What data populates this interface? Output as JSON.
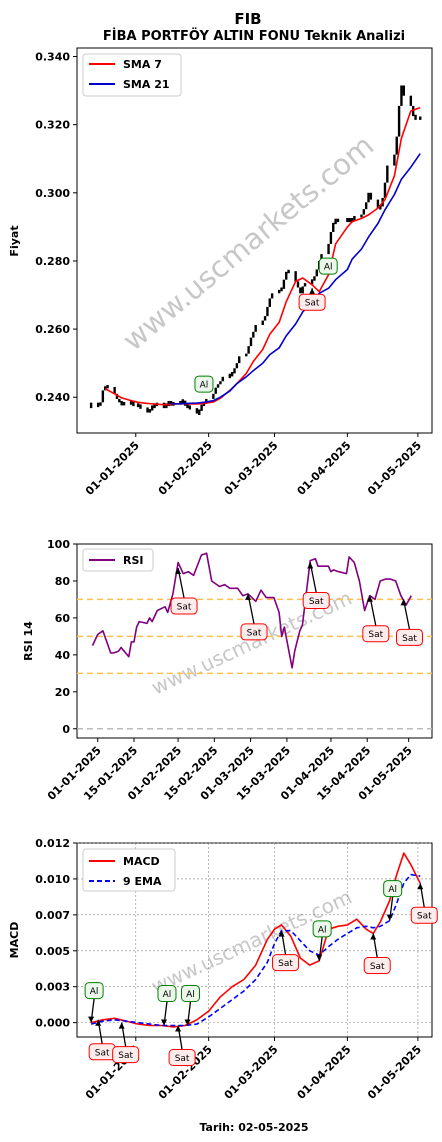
{
  "header": {
    "title": "FIB",
    "subtitle": "FİBA PORTFÖY ALTIN FONU Teknik Analizi"
  },
  "watermark": "www.uscmarkets.com",
  "footer": {
    "xlabel": "Tarih: 02-05-2025"
  },
  "colors": {
    "price": "#000000",
    "sma7": "#ff0000",
    "sma21": "#0000cc",
    "rsi": "#800080",
    "macd": "#ff0000",
    "ema9": "#0000ff",
    "buy": "#008000",
    "sell": "#ff0000",
    "level_line": "#ffc04d",
    "zero_line": "#bbbbbb"
  },
  "chart_data": [
    {
      "type": "line",
      "ylabel": "Fiyat",
      "ylim": [
        0.2295,
        0.3425
      ],
      "yticks": [
        0.24,
        0.26,
        0.28,
        0.3,
        0.32,
        0.34
      ],
      "ytick_labels": [
        "0.240",
        "0.260",
        "0.280",
        "0.300",
        "0.320",
        "0.340"
      ],
      "xlim": [
        "2024-12-07",
        "2025-05-07"
      ],
      "xticks": [
        "2025-01-01",
        "2025-02-01",
        "2025-03-01",
        "2025-04-01",
        "2025-05-01"
      ],
      "xtick_labels": [
        "01-01-2025",
        "01-02-2025",
        "01-03-2025",
        "01-04-2025",
        "01-05-2025"
      ],
      "legend": {
        "placement": "top-left",
        "entries": [
          "SMA 7",
          "SMA 21"
        ]
      },
      "price": {
        "x": [
          "2024-12-13",
          "2024-12-16",
          "2024-12-17",
          "2024-12-18",
          "2024-12-19",
          "2024-12-20",
          "2024-12-23",
          "2024-12-24",
          "2024-12-25",
          "2024-12-26",
          "2024-12-27",
          "2024-12-30",
          "2024-12-31",
          "2025-01-02",
          "2025-01-03",
          "2025-01-06",
          "2025-01-07",
          "2025-01-08",
          "2025-01-09",
          "2025-01-10",
          "2025-01-13",
          "2025-01-14",
          "2025-01-15",
          "2025-01-16",
          "2025-01-17",
          "2025-01-20",
          "2025-01-21",
          "2025-01-22",
          "2025-01-23",
          "2025-01-24",
          "2025-01-27",
          "2025-01-28",
          "2025-01-29",
          "2025-01-30",
          "2025-01-31",
          "2025-02-03",
          "2025-02-04",
          "2025-02-05",
          "2025-02-06",
          "2025-02-07",
          "2025-02-10",
          "2025-02-11",
          "2025-02-12",
          "2025-02-13",
          "2025-02-14",
          "2025-02-17",
          "2025-02-18",
          "2025-02-19",
          "2025-02-20",
          "2025-02-21",
          "2025-02-24",
          "2025-02-25",
          "2025-02-26",
          "2025-02-27",
          "2025-02-28",
          "2025-03-03",
          "2025-03-04",
          "2025-03-05",
          "2025-03-06",
          "2025-03-07",
          "2025-03-10",
          "2025-03-11",
          "2025-03-12",
          "2025-03-13",
          "2025-03-14",
          "2025-03-17",
          "2025-03-18",
          "2025-03-19",
          "2025-03-20",
          "2025-03-21",
          "2025-03-24",
          "2025-03-25",
          "2025-03-26",
          "2025-03-27",
          "2025-03-28",
          "2025-04-01",
          "2025-04-02",
          "2025-04-03",
          "2025-04-04",
          "2025-04-07",
          "2025-04-08",
          "2025-04-09",
          "2025-04-10",
          "2025-04-11",
          "2025-04-14",
          "2025-04-15",
          "2025-04-16",
          "2025-04-17",
          "2025-04-18",
          "2025-04-21",
          "2025-04-22",
          "2025-04-23",
          "2025-04-24",
          "2025-04-25",
          "2025-04-28",
          "2025-04-29",
          "2025-04-30",
          "2025-05-02"
        ],
        "values": [
          0.238,
          0.2375,
          0.2385,
          0.242,
          0.2432,
          0.243,
          0.241,
          0.2395,
          0.2385,
          0.238,
          0.2382,
          0.2385,
          0.2378,
          0.2375,
          0.237,
          0.2355,
          0.2365,
          0.2372,
          0.2378,
          0.238,
          0.2372,
          0.2378,
          0.2385,
          0.2379,
          0.2382,
          0.2385,
          0.239,
          0.2375,
          0.2372,
          0.2368,
          0.2352,
          0.236,
          0.2378,
          0.2383,
          0.2395,
          0.241,
          0.2428,
          0.2438,
          0.2447,
          0.246,
          0.2465,
          0.247,
          0.2485,
          0.25,
          0.252,
          0.2528,
          0.255,
          0.2575,
          0.2592,
          0.2612,
          0.2625,
          0.2638,
          0.2665,
          0.269,
          0.2705,
          0.2715,
          0.2718,
          0.2745,
          0.2768,
          0.277,
          0.274,
          0.2722,
          0.2705,
          0.2725,
          0.2735,
          0.2742,
          0.2755,
          0.2775,
          0.28,
          0.282,
          0.285,
          0.2885,
          0.2912,
          0.292,
          0.2918,
          0.2922,
          0.2918,
          0.2922,
          0.2928,
          0.2936,
          0.2952,
          0.2972,
          0.3,
          0.298,
          0.2955,
          0.296,
          0.2985,
          0.303,
          0.308,
          0.3112,
          0.3165,
          0.3255,
          0.3315,
          0.3285,
          0.3255,
          0.3225,
          0.3218,
          0.322
        ]
      },
      "series": [
        {
          "name": "SMA 7",
          "x": [
            "2024-12-19",
            "2024-12-23",
            "2024-12-26",
            "2024-12-30",
            "2025-01-02",
            "2025-01-06",
            "2025-01-09",
            "2025-01-13",
            "2025-01-16",
            "2025-01-20",
            "2025-01-23",
            "2025-01-27",
            "2025-01-30",
            "2025-02-03",
            "2025-02-06",
            "2025-02-10",
            "2025-02-13",
            "2025-02-17",
            "2025-02-20",
            "2025-02-24",
            "2025-02-27",
            "2025-03-03",
            "2025-03-06",
            "2025-03-10",
            "2025-03-13",
            "2025-03-17",
            "2025-03-20",
            "2025-03-24",
            "2025-03-27",
            "2025-04-01",
            "2025-04-03",
            "2025-04-07",
            "2025-04-10",
            "2025-04-14",
            "2025-04-17",
            "2025-04-21",
            "2025-04-24",
            "2025-04-28",
            "2025-05-02"
          ],
          "values": [
            0.2425,
            0.241,
            0.2398,
            0.239,
            0.2385,
            0.2382,
            0.238,
            0.2378,
            0.2379,
            0.2381,
            0.238,
            0.238,
            0.2382,
            0.2386,
            0.2397,
            0.242,
            0.244,
            0.247,
            0.2505,
            0.254,
            0.2585,
            0.262,
            0.268,
            0.274,
            0.275,
            0.273,
            0.271,
            0.276,
            0.285,
            0.29,
            0.2915,
            0.2925,
            0.2935,
            0.2955,
            0.298,
            0.305,
            0.316,
            0.324,
            0.325
          ]
        },
        {
          "name": "SMA 21",
          "x": [
            "2025-01-16",
            "2025-01-20",
            "2025-01-23",
            "2025-01-27",
            "2025-01-30",
            "2025-02-03",
            "2025-02-06",
            "2025-02-10",
            "2025-02-13",
            "2025-02-17",
            "2025-02-20",
            "2025-02-24",
            "2025-02-27",
            "2025-03-03",
            "2025-03-06",
            "2025-03-10",
            "2025-03-13",
            "2025-03-17",
            "2025-03-20",
            "2025-03-24",
            "2025-03-27",
            "2025-04-01",
            "2025-04-03",
            "2025-04-07",
            "2025-04-10",
            "2025-04-14",
            "2025-04-17",
            "2025-04-21",
            "2025-04-24",
            "2025-04-28",
            "2025-05-02"
          ],
          "values": [
            0.238,
            0.2381,
            0.2382,
            0.2383,
            0.2385,
            0.239,
            0.24,
            0.2418,
            0.244,
            0.246,
            0.2478,
            0.25,
            0.2525,
            0.2545,
            0.258,
            0.2615,
            0.265,
            0.268,
            0.2705,
            0.272,
            0.2745,
            0.2775,
            0.2805,
            0.2835,
            0.287,
            0.291,
            0.295,
            0.2995,
            0.304,
            0.3075,
            0.3115
          ]
        }
      ],
      "signals": [
        {
          "label": "Al",
          "kind": "buy",
          "x": "2025-01-30",
          "y": 0.2415
        },
        {
          "label": "Al",
          "kind": "buy",
          "x": "2025-03-23",
          "y": 0.277
        },
        {
          "label": "Sat",
          "kind": "sell",
          "x": "2025-03-17",
          "y": 0.272
        }
      ]
    },
    {
      "type": "line",
      "ylabel": "RSI 14",
      "ylim": [
        -5,
        100
      ],
      "yticks": [
        0,
        20,
        40,
        60,
        80,
        100
      ],
      "ytick_labels": [
        "0",
        "20",
        "40",
        "60",
        "80",
        "100"
      ],
      "xlim": [
        "2024-12-24",
        "2025-05-10"
      ],
      "xticks": [
        "2025-01-01",
        "2025-01-15",
        "2025-02-01",
        "2025-02-15",
        "2025-03-01",
        "2025-03-15",
        "2025-04-01",
        "2025-04-15",
        "2025-05-01"
      ],
      "xtick_labels": [
        "01-01-2025",
        "15-01-2025",
        "01-02-2025",
        "15-02-2025",
        "01-03-2025",
        "15-03-2025",
        "01-04-2025",
        "15-04-2025",
        "01-05-2025"
      ],
      "levels": [
        30,
        50,
        70
      ],
      "zero_line": 0,
      "legend": {
        "placement": "top-left",
        "entries": [
          "RSI"
        ]
      },
      "series": [
        {
          "name": "RSI",
          "x": [
            "2024-12-30",
            "2025-01-01",
            "2025-01-03",
            "2025-01-06",
            "2025-01-07",
            "2025-01-09",
            "2025-01-10",
            "2025-01-13",
            "2025-01-14",
            "2025-01-15",
            "2025-01-16",
            "2025-01-17",
            "2025-01-20",
            "2025-01-21",
            "2025-01-22",
            "2025-01-24",
            "2025-01-27",
            "2025-01-28",
            "2025-01-30",
            "2025-02-01",
            "2025-02-03",
            "2025-02-05",
            "2025-02-07",
            "2025-02-10",
            "2025-02-12",
            "2025-02-14",
            "2025-02-17",
            "2025-02-19",
            "2025-02-21",
            "2025-02-24",
            "2025-02-26",
            "2025-02-28",
            "2025-03-03",
            "2025-03-05",
            "2025-03-07",
            "2025-03-10",
            "2025-03-12",
            "2025-03-13",
            "2025-03-14",
            "2025-03-17",
            "2025-03-18",
            "2025-03-20",
            "2025-03-21",
            "2025-03-24",
            "2025-03-26",
            "2025-03-27",
            "2025-03-28",
            "2025-03-31",
            "2025-04-01",
            "2025-04-02",
            "2025-04-04",
            "2025-04-07",
            "2025-04-08",
            "2025-04-10",
            "2025-04-12",
            "2025-04-14",
            "2025-04-16",
            "2025-04-18",
            "2025-04-20",
            "2025-04-22",
            "2025-04-24",
            "2025-04-26",
            "2025-04-28",
            "2025-04-30",
            "2025-05-02"
          ],
          "values": [
            45,
            51,
            53,
            41,
            41,
            42,
            44,
            39,
            47,
            47,
            55,
            58,
            57,
            60,
            58,
            64,
            66,
            63,
            73,
            90,
            84,
            85,
            83,
            94,
            95,
            80,
            77,
            78,
            76,
            76,
            72,
            73,
            69,
            75,
            71,
            71,
            63,
            50,
            55,
            33,
            42,
            53,
            56,
            91,
            92,
            88,
            88,
            88,
            85,
            86,
            85,
            84,
            93,
            90,
            80,
            64,
            72,
            70,
            80,
            81,
            81,
            80,
            72,
            67,
            72
          ]
        }
      ],
      "signals": [
        {
          "label": "Sat",
          "kind": "sell",
          "x": "2025-02-01",
          "y": 87
        },
        {
          "label": "Sat",
          "kind": "sell",
          "x": "2025-02-28",
          "y": 73
        },
        {
          "label": "Sat",
          "kind": "sell",
          "x": "2025-03-24",
          "y": 90
        },
        {
          "label": "Sat",
          "kind": "sell",
          "x": "2025-04-16",
          "y": 72
        },
        {
          "label": "Sat",
          "kind": "sell",
          "x": "2025-04-29",
          "y": 70
        }
      ]
    },
    {
      "type": "line",
      "ylabel": "MACD",
      "xlabel": "Tarih: 02-05-2025",
      "ylim": [
        -0.001,
        0.0125
      ],
      "yticks": [
        0.0,
        0.0025,
        0.005,
        0.0075,
        0.01,
        0.0125
      ],
      "ytick_labels": [
        "0.000",
        "0.003",
        "0.005",
        "0.007",
        "0.010",
        "0.012"
      ],
      "xlim": [
        "2024-12-07",
        "2025-05-07"
      ],
      "xticks": [
        "2025-01-01",
        "2025-02-01",
        "2025-03-01",
        "2025-04-01",
        "2025-05-01"
      ],
      "xtick_labels": [
        "01-01-2025",
        "01-02-2025",
        "01-03-2025",
        "01-04-2025",
        "01-05-2025"
      ],
      "grid": true,
      "legend": {
        "placement": "top-left",
        "entries": [
          "MACD",
          "9 EMA"
        ]
      },
      "series": [
        {
          "name": "MACD",
          "x": [
            "2024-12-13",
            "2024-12-18",
            "2024-12-23",
            "2024-12-28",
            "2025-01-02",
            "2025-01-07",
            "2025-01-12",
            "2025-01-17",
            "2025-01-22",
            "2025-01-27",
            "2025-02-01",
            "2025-02-06",
            "2025-02-11",
            "2025-02-16",
            "2025-02-21",
            "2025-02-26",
            "2025-03-01",
            "2025-03-04",
            "2025-03-08",
            "2025-03-12",
            "2025-03-16",
            "2025-03-20",
            "2025-03-24",
            "2025-03-28",
            "2025-04-01",
            "2025-04-05",
            "2025-04-09",
            "2025-04-12",
            "2025-04-15",
            "2025-04-19",
            "2025-04-22",
            "2025-04-25",
            "2025-04-28",
            "2025-05-02"
          ],
          "values": [
            0.0,
            0.0002,
            0.0003,
            0.0001,
            -0.0001,
            -0.0002,
            -0.0002,
            -0.0003,
            -0.0002,
            0.0002,
            0.0008,
            0.0018,
            0.0025,
            0.003,
            0.004,
            0.0058,
            0.0065,
            0.0068,
            0.006,
            0.0045,
            0.004,
            0.0043,
            0.0065,
            0.0067,
            0.0068,
            0.0072,
            0.0065,
            0.0062,
            0.007,
            0.0085,
            0.0103,
            0.0118,
            0.011,
            0.0097
          ]
        },
        {
          "name": "9 EMA",
          "x": [
            "2024-12-13",
            "2024-12-18",
            "2024-12-23",
            "2024-12-28",
            "2025-01-02",
            "2025-01-07",
            "2025-01-12",
            "2025-01-17",
            "2025-01-22",
            "2025-01-27",
            "2025-02-01",
            "2025-02-06",
            "2025-02-11",
            "2025-02-16",
            "2025-02-21",
            "2025-02-26",
            "2025-03-01",
            "2025-03-04",
            "2025-03-08",
            "2025-03-12",
            "2025-03-16",
            "2025-03-20",
            "2025-03-24",
            "2025-03-28",
            "2025-04-01",
            "2025-04-05",
            "2025-04-09",
            "2025-04-12",
            "2025-04-15",
            "2025-04-19",
            "2025-04-22",
            "2025-04-25",
            "2025-04-28",
            "2025-05-02"
          ],
          "values": [
            -0.0001,
            0.0001,
            0.0002,
            0.0001,
            0.0,
            -0.0001,
            -0.0002,
            -0.0002,
            -0.0002,
            -0.0001,
            0.0004,
            0.001,
            0.0016,
            0.0022,
            0.003,
            0.0042,
            0.0055,
            0.0064,
            0.0064,
            0.0057,
            0.005,
            0.0047,
            0.0053,
            0.0058,
            0.0062,
            0.0066,
            0.0067,
            0.0066,
            0.0067,
            0.0071,
            0.0083,
            0.0097,
            0.0103,
            0.0102
          ]
        }
      ],
      "signals": [
        {
          "label": "Al",
          "kind": "buy",
          "x": "2024-12-13",
          "y": 0.0
        },
        {
          "label": "Sat",
          "kind": "sell",
          "x": "2024-12-16",
          "y": 0.0002
        },
        {
          "label": "Sat",
          "kind": "sell",
          "x": "2024-12-26",
          "y": 0.0
        },
        {
          "label": "Al",
          "kind": "buy",
          "x": "2025-01-13",
          "y": -0.0002
        },
        {
          "label": "Al",
          "kind": "buy",
          "x": "2025-01-23",
          "y": -0.0002
        },
        {
          "label": "Sat",
          "kind": "sell",
          "x": "2025-01-19",
          "y": -0.0002
        },
        {
          "label": "Sat",
          "kind": "sell",
          "x": "2025-03-04",
          "y": 0.0064
        },
        {
          "label": "Al",
          "kind": "buy",
          "x": "2025-03-20",
          "y": 0.0043
        },
        {
          "label": "Sat",
          "kind": "sell",
          "x": "2025-04-12",
          "y": 0.0062
        },
        {
          "label": "Al",
          "kind": "buy",
          "x": "2025-04-19",
          "y": 0.0071
        },
        {
          "label": "Sat",
          "kind": "sell",
          "x": "2025-05-02",
          "y": 0.0097
        }
      ]
    }
  ]
}
